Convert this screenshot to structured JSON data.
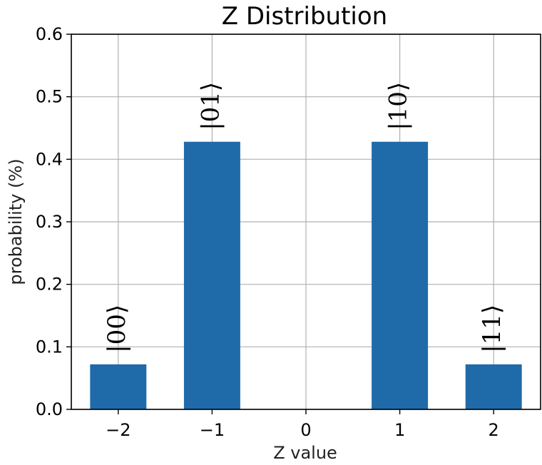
{
  "chart_data": {
    "type": "bar",
    "title": "Z Distribution",
    "xlabel": "Z value",
    "ylabel": "probability (%)",
    "x": [
      -2,
      -1,
      1,
      2
    ],
    "values": [
      0.072,
      0.428,
      0.428,
      0.072
    ],
    "bar_labels": [
      "|00⟩",
      "|01⟩",
      "|10⟩",
      "|11⟩"
    ],
    "xlim": [
      -2.5,
      2.5
    ],
    "ylim": [
      0,
      0.6
    ],
    "xticks": [
      -2,
      -1,
      0,
      1,
      2
    ],
    "xtick_labels": [
      "−2",
      "−1",
      "0",
      "1",
      "2"
    ],
    "yticks": [
      0,
      0.1,
      0.2,
      0.3,
      0.4,
      0.5,
      0.6
    ],
    "ytick_labels": [
      "0.0",
      "0.1",
      "0.2",
      "0.3",
      "0.4",
      "0.5",
      "0.6"
    ],
    "bar_width": 0.6,
    "grid": true,
    "bar_color": "#1f6aa9"
  }
}
